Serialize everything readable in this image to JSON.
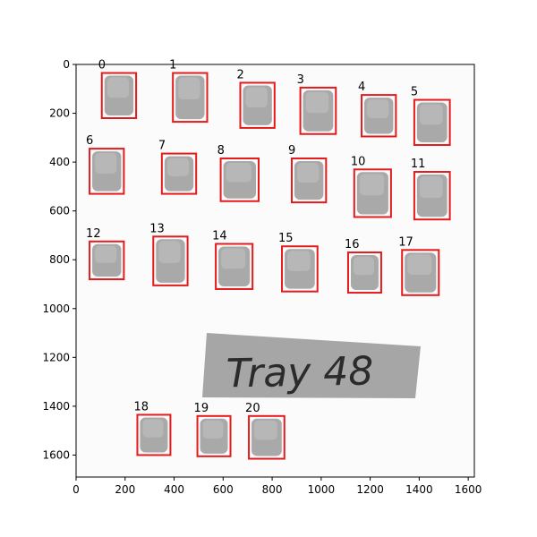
{
  "figure": {
    "label_text": "Tray 48",
    "x_ticks": [
      "0",
      "200",
      "400",
      "600",
      "800",
      "1000",
      "1200",
      "1400",
      "1600"
    ],
    "y_ticks": [
      "0",
      "200",
      "400",
      "600",
      "800",
      "1000",
      "1200",
      "1400",
      "1600"
    ],
    "box_color": "#e41a1c",
    "seed_color": "#9a9a9a"
  },
  "chart_data": {
    "type": "annotated-image",
    "xlim": [
      0,
      1625
    ],
    "ylim": [
      1690,
      0
    ],
    "x_ticks": [
      0,
      200,
      400,
      600,
      800,
      1000,
      1200,
      1400,
      1600
    ],
    "y_ticks": [
      0,
      200,
      400,
      600,
      800,
      1000,
      1200,
      1400,
      1600
    ],
    "boxes": [
      {
        "label": "0",
        "x0": 105,
        "y0": 35,
        "x1": 245,
        "y1": 220
      },
      {
        "label": "1",
        "x0": 395,
        "y0": 35,
        "x1": 535,
        "y1": 235
      },
      {
        "label": "2",
        "x0": 670,
        "y0": 75,
        "x1": 810,
        "y1": 260
      },
      {
        "label": "3",
        "x0": 915,
        "y0": 95,
        "x1": 1060,
        "y1": 285
      },
      {
        "label": "4",
        "x0": 1165,
        "y0": 125,
        "x1": 1305,
        "y1": 295
      },
      {
        "label": "5",
        "x0": 1380,
        "y0": 145,
        "x1": 1525,
        "y1": 330
      },
      {
        "label": "6",
        "x0": 55,
        "y0": 345,
        "x1": 195,
        "y1": 530
      },
      {
        "label": "7",
        "x0": 350,
        "y0": 365,
        "x1": 490,
        "y1": 530
      },
      {
        "label": "8",
        "x0": 590,
        "y0": 385,
        "x1": 745,
        "y1": 560
      },
      {
        "label": "9",
        "x0": 880,
        "y0": 385,
        "x1": 1020,
        "y1": 565
      },
      {
        "label": "10",
        "x0": 1135,
        "y0": 430,
        "x1": 1285,
        "y1": 625
      },
      {
        "label": "11",
        "x0": 1380,
        "y0": 440,
        "x1": 1525,
        "y1": 635
      },
      {
        "label": "12",
        "x0": 55,
        "y0": 725,
        "x1": 195,
        "y1": 880
      },
      {
        "label": "13",
        "x0": 315,
        "y0": 705,
        "x1": 455,
        "y1": 905
      },
      {
        "label": "14",
        "x0": 570,
        "y0": 735,
        "x1": 720,
        "y1": 920
      },
      {
        "label": "15",
        "x0": 840,
        "y0": 745,
        "x1": 985,
        "y1": 930
      },
      {
        "label": "16",
        "x0": 1110,
        "y0": 770,
        "x1": 1245,
        "y1": 935
      },
      {
        "label": "17",
        "x0": 1330,
        "y0": 760,
        "x1": 1480,
        "y1": 945
      },
      {
        "label": "18",
        "x0": 250,
        "y0": 1435,
        "x1": 385,
        "y1": 1600
      },
      {
        "label": "19",
        "x0": 495,
        "y0": 1440,
        "x1": 630,
        "y1": 1605
      },
      {
        "label": "20",
        "x0": 705,
        "y0": 1440,
        "x1": 850,
        "y1": 1615
      }
    ]
  }
}
